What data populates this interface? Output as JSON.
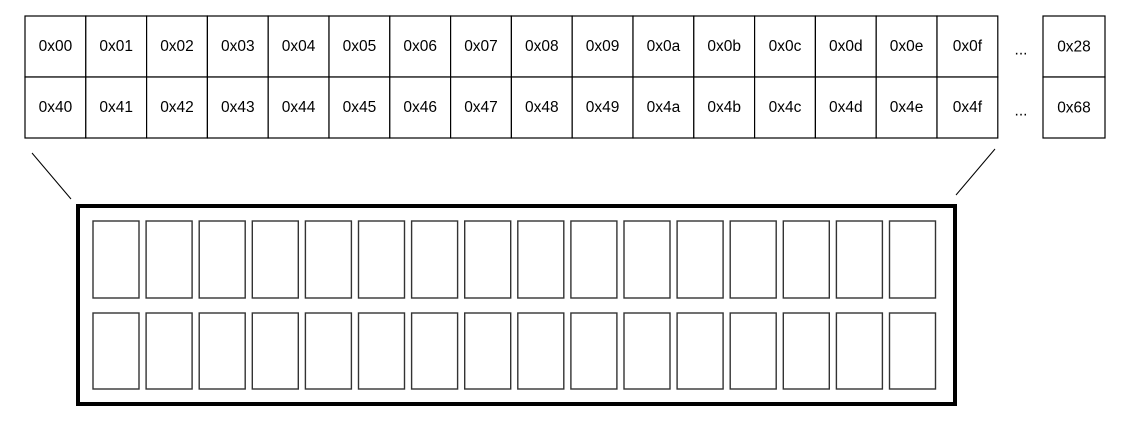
{
  "ddram": {
    "row1": [
      "0x00",
      "0x01",
      "0x02",
      "0x03",
      "0x04",
      "0x05",
      "0x06",
      "0x07",
      "0x08",
      "0x09",
      "0x0a",
      "0x0b",
      "0x0c",
      "0x0d",
      "0x0e",
      "0x0f"
    ],
    "row2": [
      "0x40",
      "0x41",
      "0x42",
      "0x43",
      "0x44",
      "0x45",
      "0x46",
      "0x47",
      "0x48",
      "0x49",
      "0x4a",
      "0x4b",
      "0x4c",
      "0x4d",
      "0x4e",
      "0x4f"
    ],
    "ellipsis": "...",
    "row1_last": "0x28",
    "row2_last": "0x68"
  },
  "lcd": {
    "rows": 2,
    "columns": 16
  }
}
